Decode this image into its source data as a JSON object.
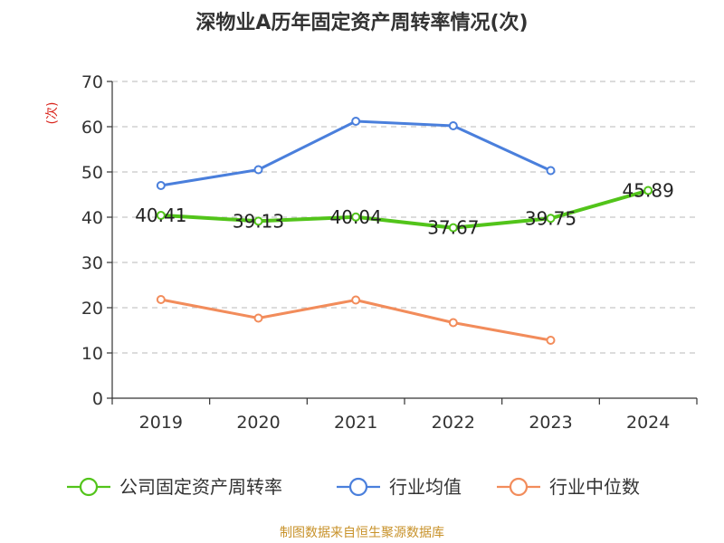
{
  "chart_data": {
    "type": "line",
    "title": "深物业A历年固定资产周转率情况(次)",
    "y_unit": "(次)",
    "categories": [
      "2019",
      "2020",
      "2021",
      "2022",
      "2023",
      "2024"
    ],
    "ylim": [
      0,
      70
    ],
    "yticks": [
      0,
      10,
      20,
      30,
      40,
      50,
      60,
      70
    ],
    "grid": true,
    "legend_position": "bottom",
    "series": [
      {
        "name": "公司固定资产周转率",
        "color": "#52c41a",
        "values": [
          40.41,
          39.13,
          40.04,
          37.67,
          39.75,
          45.89
        ],
        "labels": [
          "40.41",
          "39.13",
          "40.04",
          "37.67",
          "39.75",
          "45.89"
        ]
      },
      {
        "name": "行业均值",
        "color": "#4a7fdc",
        "values": [
          47.0,
          50.5,
          61.2,
          60.2,
          50.3,
          null
        ]
      },
      {
        "name": "行业中位数",
        "color": "#f28c5b",
        "values": [
          21.8,
          17.7,
          21.7,
          16.7,
          12.8,
          null
        ]
      }
    ]
  },
  "source": "制图数据来自恒生聚源数据库"
}
